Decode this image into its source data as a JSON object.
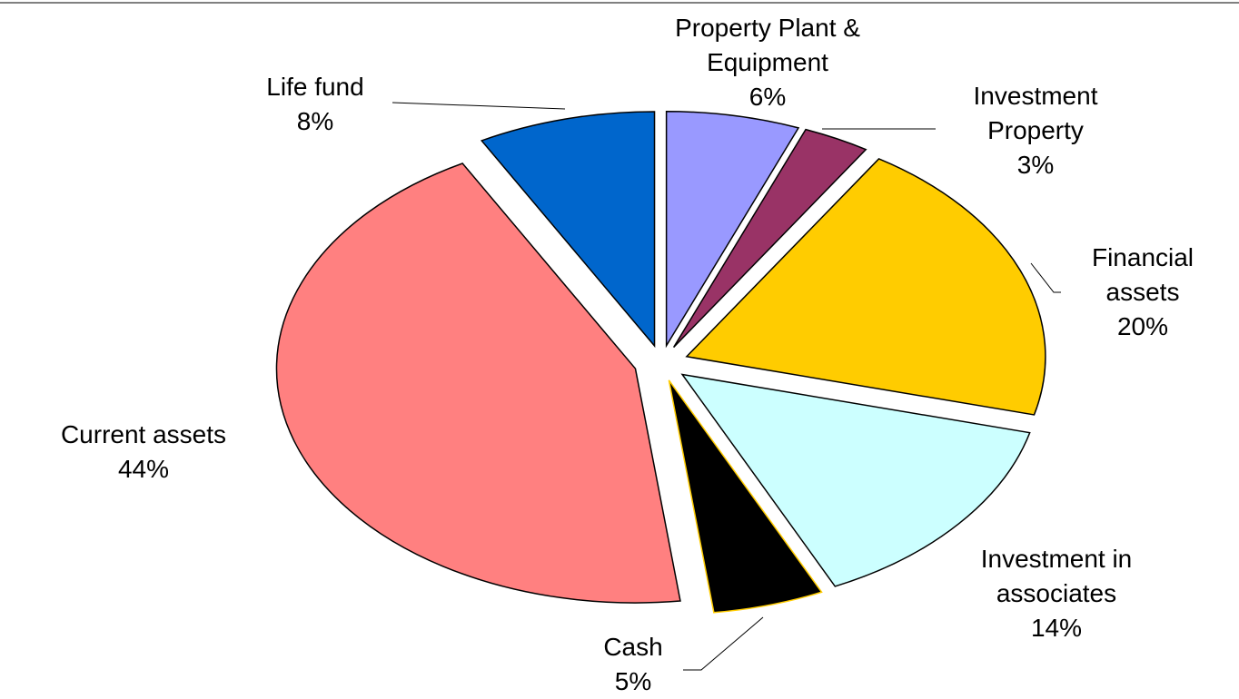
{
  "chart_data": {
    "type": "pie",
    "categories": [
      "Property Plant & Equipment",
      "Investment Property",
      "Financial assets",
      "Investment in associates",
      "Cash",
      "Current assets",
      "Life fund"
    ],
    "values": [
      6,
      3,
      20,
      14,
      5,
      44,
      8
    ],
    "value_labels": [
      "6%",
      "3%",
      "20%",
      "14%",
      "5%",
      "44%",
      "8%"
    ],
    "colors": [
      "#9999ff",
      "#993366",
      "#ffcc00",
      "#ccffff",
      "#000000",
      "#ff8080",
      "#0066cc"
    ]
  }
}
